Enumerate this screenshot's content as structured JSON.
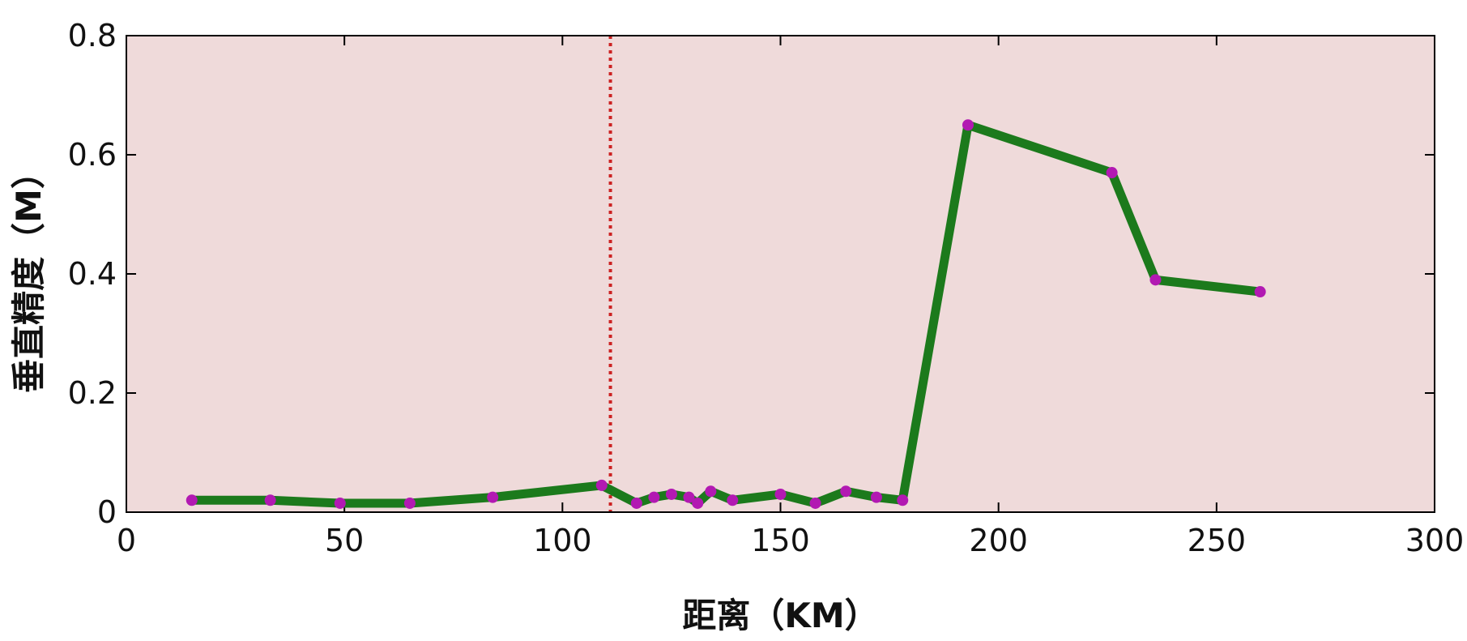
{
  "chart_data": {
    "type": "line",
    "xlabel": "距离（KM）",
    "ylabel": "垂直精度（M）",
    "xlim": [
      0,
      300
    ],
    "ylim": [
      0,
      0.8
    ],
    "xticks": [
      "0",
      "50",
      "100",
      "150",
      "200",
      "250",
      "300"
    ],
    "yticks": [
      "0",
      "0.2",
      "0.4",
      "0.6",
      "0.8"
    ],
    "grid": false,
    "background_color": "#efdada",
    "line_color": "#1c7a1c",
    "marker_color": "#b219b2",
    "reference_line": {
      "x": 111,
      "color": "#cc2222",
      "style": "dotted"
    },
    "series": [
      {
        "x": [
          15,
          33,
          49,
          65,
          84,
          109,
          117,
          121,
          125,
          129,
          131,
          134,
          139,
          150,
          158,
          165,
          172,
          178,
          193,
          226,
          236,
          260
        ],
        "y": [
          0.02,
          0.02,
          0.015,
          0.015,
          0.025,
          0.045,
          0.015,
          0.025,
          0.03,
          0.025,
          0.015,
          0.035,
          0.02,
          0.03,
          0.015,
          0.035,
          0.025,
          0.02,
          0.65,
          0.57,
          0.39,
          0.37
        ]
      }
    ]
  }
}
